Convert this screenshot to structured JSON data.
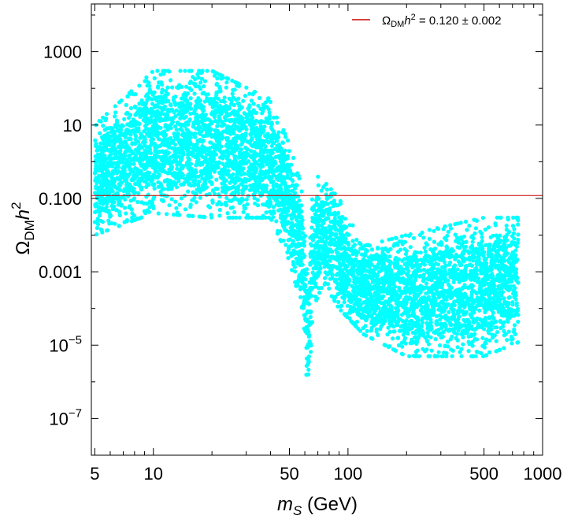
{
  "chart_data": {
    "type": "scatter",
    "x_scale": "log",
    "y_scale": "log",
    "xlim": [
      4.8,
      1000
    ],
    "ylim": [
      1e-08,
      20000
    ],
    "xlabel": {
      "var": "m",
      "sub": "S",
      "unit": " (GeV)"
    },
    "ylabel": {
      "omega": "Ω",
      "sub": "DM",
      "h": "h",
      "sup": "2"
    },
    "x_ticks": [
      {
        "value": 5,
        "label": "5"
      },
      {
        "value": 10,
        "label": "10"
      },
      {
        "value": 50,
        "label": "50"
      },
      {
        "value": 100,
        "label": "100"
      },
      {
        "value": 500,
        "label": "500"
      },
      {
        "value": 1000,
        "label": "1000"
      }
    ],
    "y_ticks": [
      {
        "value": 1e-07,
        "base": "10",
        "exp": "−7"
      },
      {
        "value": 1e-05,
        "base": "10",
        "exp": "−5"
      },
      {
        "value": 0.001,
        "label": "0.001"
      },
      {
        "value": 0.1,
        "label": "0.100"
      },
      {
        "value": 10,
        "label": "10"
      },
      {
        "value": 1000,
        "label": "1000"
      }
    ],
    "reference_line": {
      "y": 0.12,
      "color": "#cc0000",
      "legend": {
        "omega": "Ω",
        "sub": "DM",
        "h": "h",
        "sup": "2",
        "value": " = 0.120 ± 0.002"
      }
    },
    "scatter_series": {
      "color": "#00ffff",
      "x_range_GeV": [
        5,
        750
      ],
      "band_envelope": [
        {
          "x": 5,
          "ymin": 0.01,
          "ymax": 10
        },
        {
          "x": 10,
          "ymin": 0.04,
          "ymax": 300
        },
        {
          "x": 20,
          "ymin": 0.03,
          "ymax": 300
        },
        {
          "x": 40,
          "ymin": 0.03,
          "ymax": 50
        },
        {
          "x": 50,
          "ymin": 0.002,
          "ymax": 3
        },
        {
          "x": 58,
          "ymin": 0.0001,
          "ymax": 0.2
        },
        {
          "x": 62.5,
          "ymin": 2.5e-07,
          "ymax": 0.001
        },
        {
          "x": 66,
          "ymin": 0.0001,
          "ymax": 0.5
        },
        {
          "x": 75,
          "ymin": 0.0005,
          "ymax": 0.3
        },
        {
          "x": 90,
          "ymin": 0.0001,
          "ymax": 0.1
        },
        {
          "x": 120,
          "ymin": 2e-05,
          "ymax": 0.005
        },
        {
          "x": 200,
          "ymin": 5e-06,
          "ymax": 0.01
        },
        {
          "x": 500,
          "ymin": 5e-06,
          "ymax": 0.03
        },
        {
          "x": 750,
          "ymin": 1.2e-05,
          "ymax": 0.03
        }
      ]
    }
  }
}
